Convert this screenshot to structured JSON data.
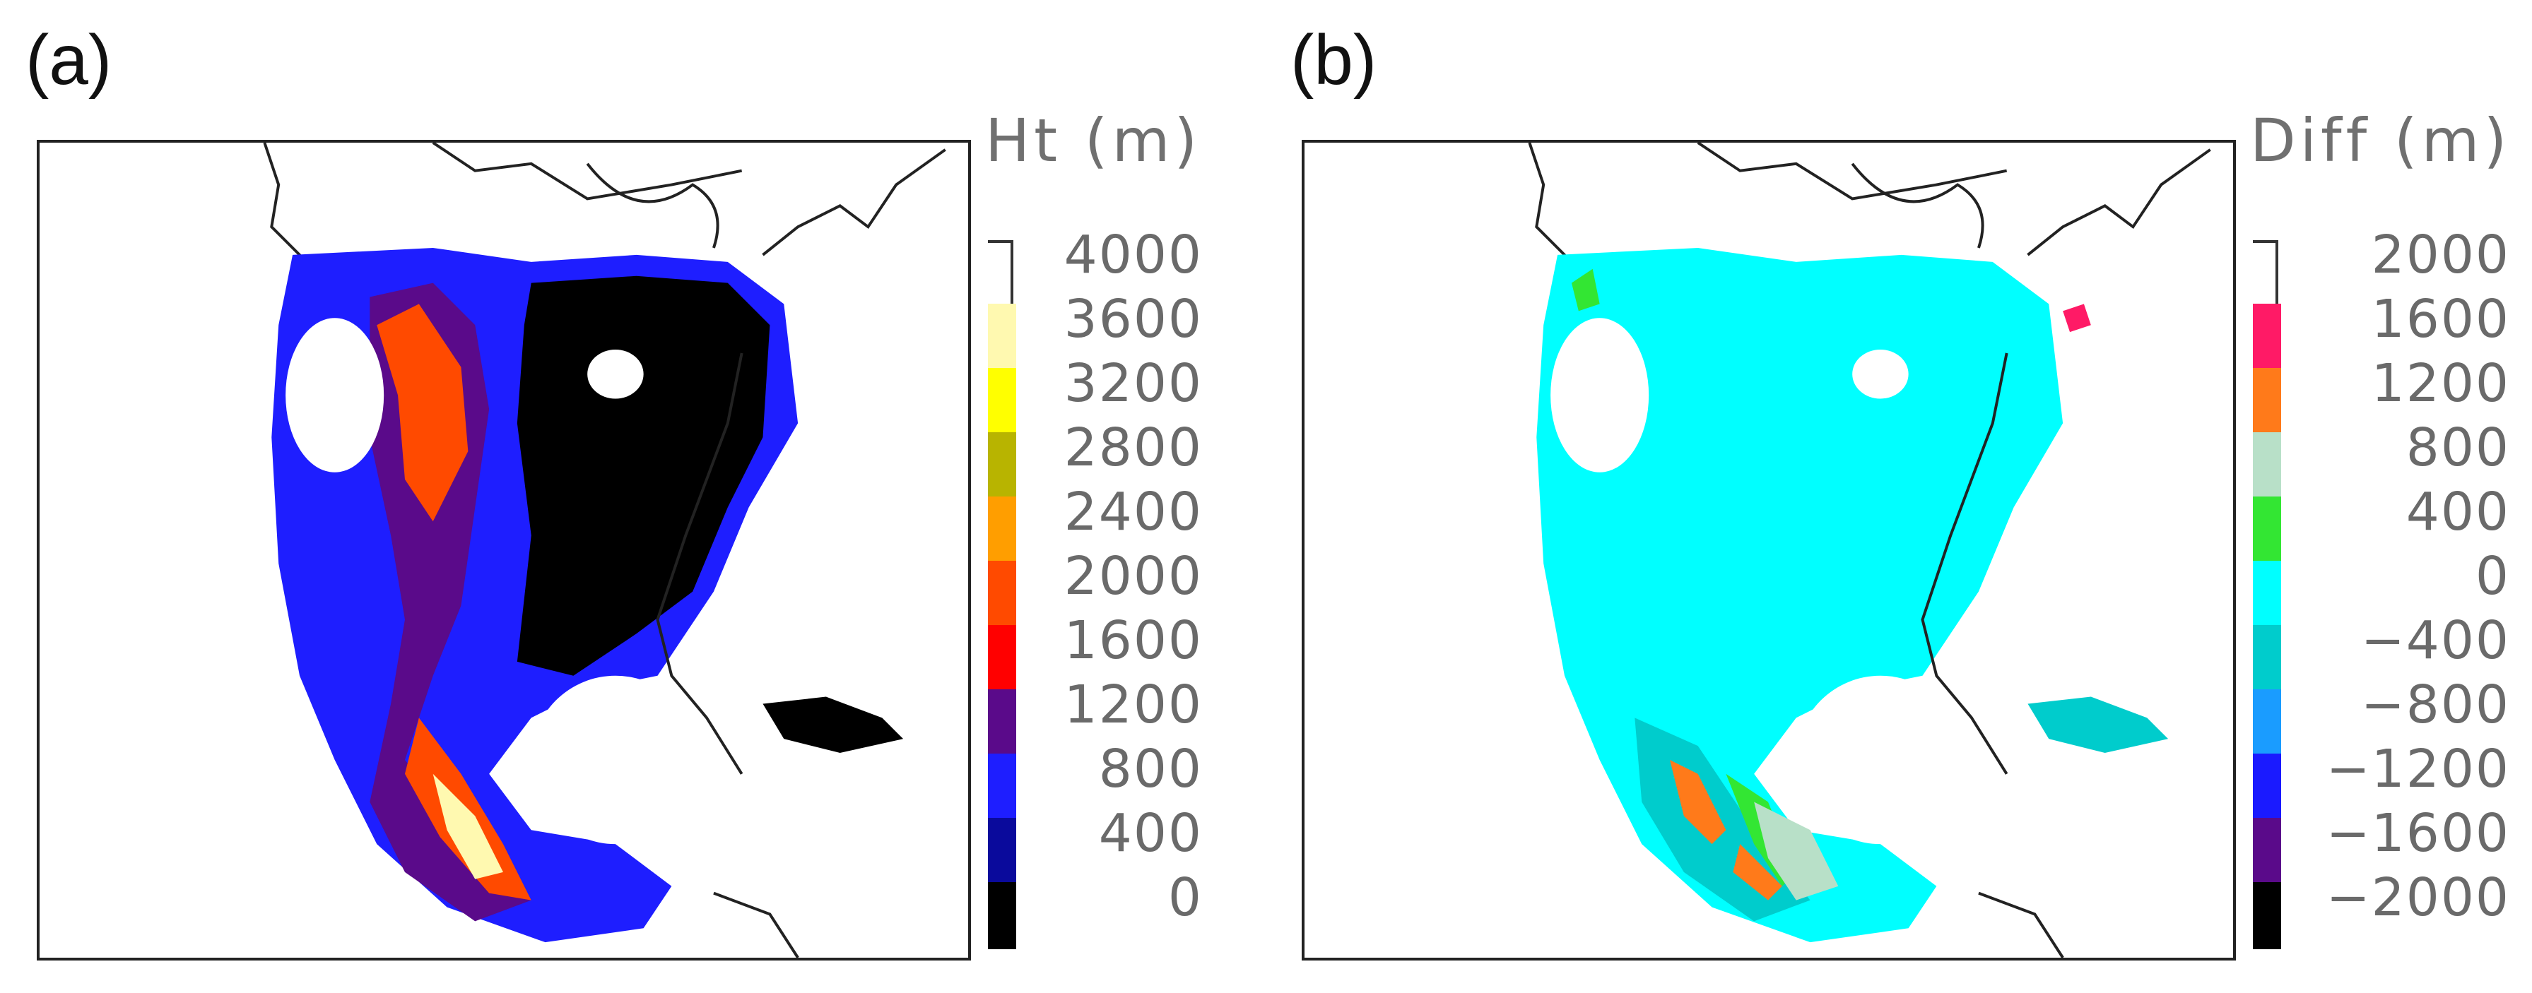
{
  "panel_a": {
    "label": "(a)",
    "legend_title": "Ht (m)",
    "ticks": [
      "4000",
      "3600",
      "3200",
      "2800",
      "2400",
      "2000",
      "1600",
      "1200",
      "800",
      "400",
      "0"
    ],
    "colors": [
      "#ffffff",
      "#fff9b0",
      "#ffff00",
      "#b8b400",
      "#ff9e00",
      "#ff4a00",
      "#ff0000",
      "#5a0a8a",
      "#1e1eff",
      "#0a0a9c",
      "#000000"
    ]
  },
  "panel_b": {
    "label": "(b)",
    "legend_title": "Diff (m)",
    "ticks": [
      "2000",
      "1600",
      "1200",
      "800",
      "400",
      "0",
      "−400",
      "−800",
      "−1200",
      "−1600",
      "−2000"
    ],
    "colors": [
      "#ffffff",
      "#ff1a66",
      "#ff7a1a",
      "#b8e0c8",
      "#33e633",
      "#00ffff",
      "#00cccc",
      "#1a9cff",
      "#1a1aff",
      "#5a0a8a",
      "#000000"
    ]
  }
}
